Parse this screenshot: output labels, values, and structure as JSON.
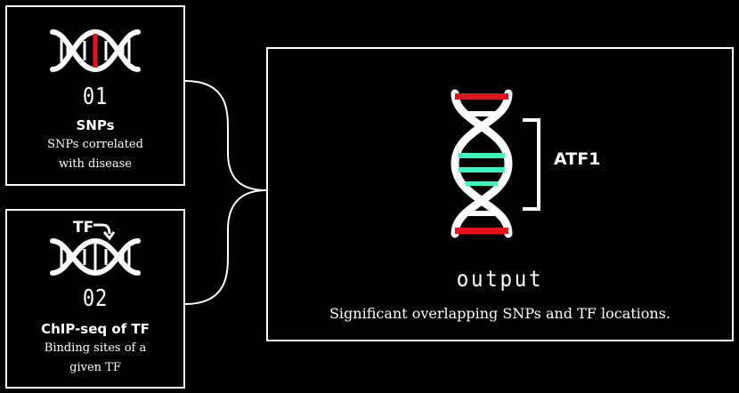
{
  "colors": {
    "background": "#000000",
    "line": "#ffffff",
    "highlight_red": "#e8101c",
    "highlight_green": "#3ff5bf"
  },
  "steps": [
    {
      "number": "01",
      "title": "SNPs",
      "description_line1": "SNPs correlated",
      "description_line2": "with disease",
      "icon": "dna-icon"
    },
    {
      "number": "02",
      "title": "ChIP-seq of TF",
      "description_line1": "Binding sites of a",
      "description_line2": "given TF",
      "icon_label": "TF",
      "icon": "dna-icon"
    }
  ],
  "output": {
    "title": "output",
    "description": "Significant overlapping SNPs and TF locations.",
    "bracket_label": "ATF1",
    "icon": "dna-icon"
  }
}
